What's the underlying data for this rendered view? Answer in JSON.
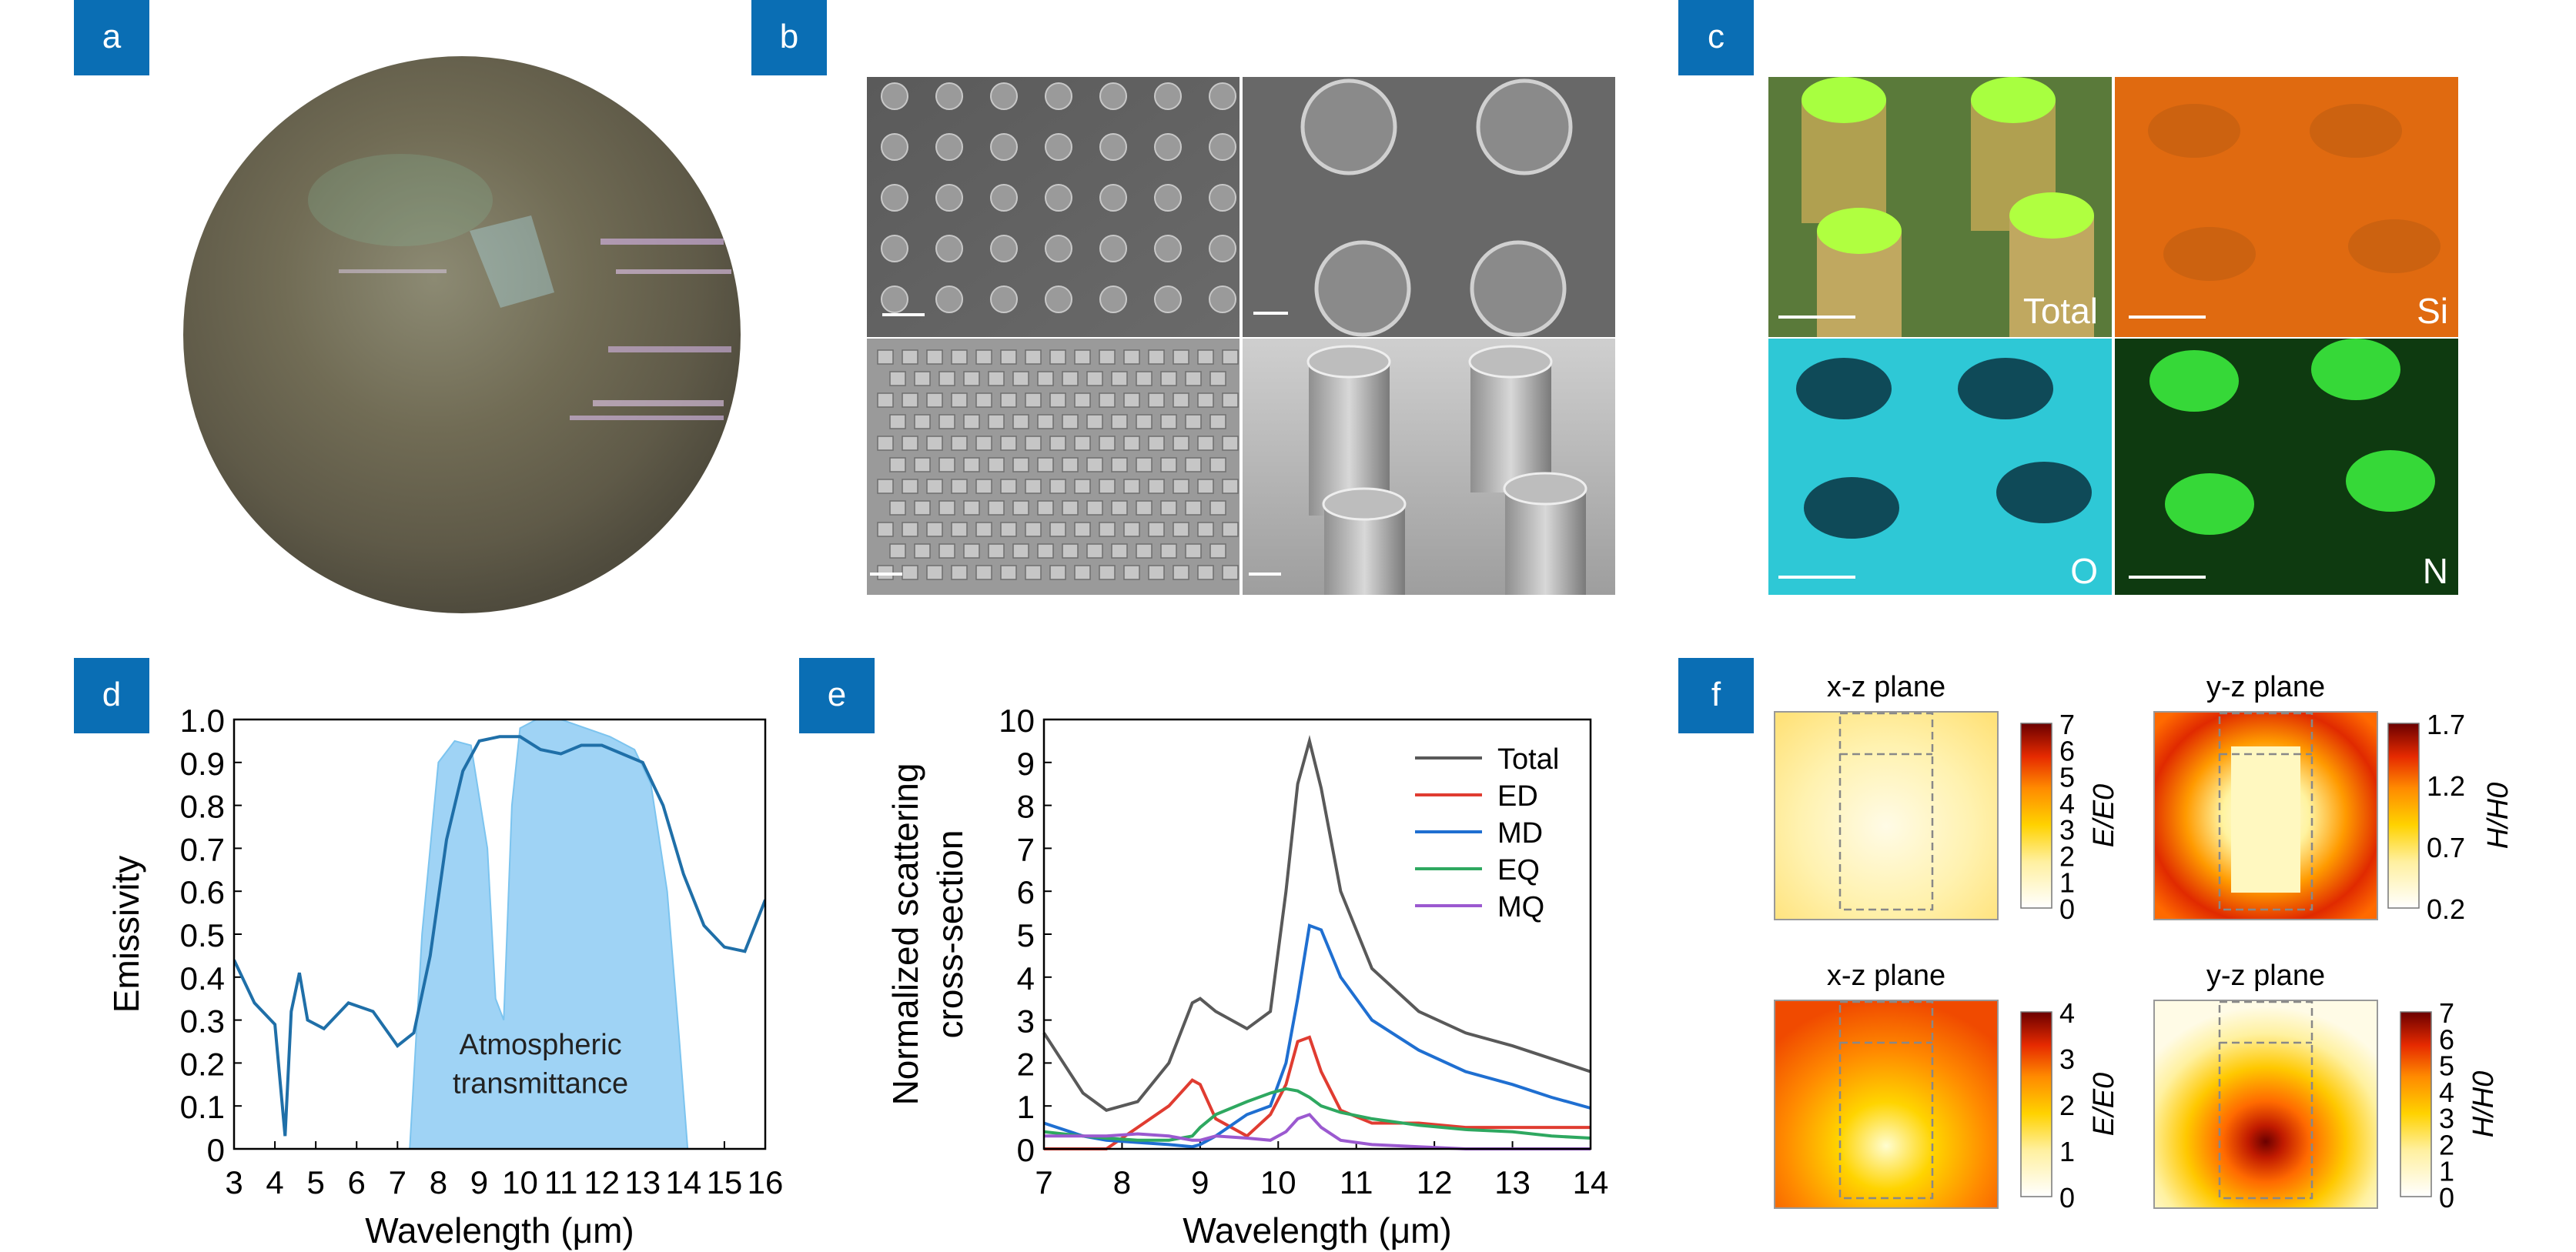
{
  "panels": {
    "a": {
      "label": "a"
    },
    "b": {
      "label": "b"
    },
    "c": {
      "label": "c",
      "maps": [
        "Total",
        "Si",
        "O",
        "N"
      ]
    },
    "d": {
      "label": "d"
    },
    "e": {
      "label": "e"
    },
    "f": {
      "label": "f",
      "maps": [
        {
          "plane": "x-z plane",
          "quantity": "E/E0",
          "ticks": [
            "7",
            "6",
            "5",
            "4",
            "3",
            "2",
            "1",
            "0"
          ]
        },
        {
          "plane": "y-z plane",
          "quantity": "H/H0",
          "ticks": [
            "1.7",
            "1.2",
            "0.7",
            "0.2"
          ]
        },
        {
          "plane": "x-z plane",
          "quantity": "E/E0",
          "ticks": [
            "4",
            "3",
            "2",
            "1",
            "0"
          ]
        },
        {
          "plane": "y-z plane",
          "quantity": "H/H0",
          "ticks": [
            "7",
            "6",
            "5",
            "4",
            "3",
            "2",
            "1",
            "0"
          ]
        }
      ]
    }
  },
  "chart_data": [
    {
      "type": "line",
      "panel": "d",
      "xlabel": "Wavelength (μm)",
      "ylabel": "Emissivity",
      "xlim": [
        3,
        16
      ],
      "ylim": [
        0,
        1.0
      ],
      "xticks": [
        "3",
        "4",
        "5",
        "6",
        "7",
        "8",
        "9",
        "10",
        "11",
        "12",
        "13",
        "14",
        "15",
        "16"
      ],
      "yticks": [
        "0",
        "0.1",
        "0.2",
        "0.3",
        "0.4",
        "0.5",
        "0.6",
        "0.7",
        "0.8",
        "0.9",
        "1.0"
      ],
      "annotation": "Atmospheric transmittance",
      "color": "#1f6fa8",
      "band_color": "#9fd3f5",
      "x": [
        3,
        3.5,
        4.0,
        4.25,
        4.4,
        4.6,
        4.8,
        5.2,
        5.8,
        6.4,
        7.0,
        7.4,
        7.8,
        8.2,
        8.6,
        9.0,
        9.5,
        10.0,
        10.5,
        11.0,
        11.5,
        12.0,
        12.5,
        13.0,
        13.5,
        14.0,
        14.5,
        15.0,
        15.5,
        16.0
      ],
      "y": [
        0.44,
        0.34,
        0.29,
        0.03,
        0.32,
        0.41,
        0.3,
        0.28,
        0.34,
        0.32,
        0.24,
        0.27,
        0.45,
        0.72,
        0.88,
        0.95,
        0.96,
        0.96,
        0.93,
        0.92,
        0.94,
        0.94,
        0.92,
        0.9,
        0.8,
        0.64,
        0.52,
        0.47,
        0.46,
        0.58
      ],
      "band_x": [
        7.3,
        7.6,
        8.0,
        8.4,
        8.8,
        9.2,
        9.4,
        9.6,
        9.8,
        10.0,
        10.4,
        11.0,
        11.6,
        12.2,
        12.8,
        13.2,
        13.6,
        13.9,
        14.1
      ],
      "band_y": [
        0.0,
        0.5,
        0.9,
        0.95,
        0.94,
        0.7,
        0.35,
        0.3,
        0.8,
        0.98,
        1.0,
        1.0,
        0.98,
        0.96,
        0.93,
        0.85,
        0.6,
        0.25,
        0.0
      ]
    },
    {
      "type": "line",
      "panel": "e",
      "xlabel": "Wavelength (μm)",
      "ylabel": "Normalized scattering cross-section",
      "ylabel_lines": [
        "Normalized scattering",
        "cross-section"
      ],
      "xlim": [
        7,
        14
      ],
      "ylim": [
        0,
        10
      ],
      "xticks": [
        "7",
        "8",
        "9",
        "10",
        "11",
        "12",
        "13",
        "14"
      ],
      "yticks": [
        "0",
        "1",
        "2",
        "3",
        "4",
        "5",
        "6",
        "7",
        "8",
        "9",
        "10"
      ],
      "legend": "top-right",
      "x": [
        7.0,
        7.5,
        7.8,
        8.2,
        8.6,
        8.9,
        9.0,
        9.2,
        9.6,
        9.9,
        10.1,
        10.25,
        10.4,
        10.55,
        10.8,
        11.2,
        11.8,
        12.4,
        13.0,
        13.5,
        14.0
      ],
      "series": [
        {
          "name": "Total",
          "color": "#595959",
          "values": [
            2.7,
            1.3,
            0.9,
            1.1,
            2.0,
            3.4,
            3.5,
            3.2,
            2.8,
            3.2,
            6.0,
            8.5,
            9.5,
            8.4,
            6.0,
            4.2,
            3.2,
            2.7,
            2.4,
            2.1,
            1.8
          ]
        },
        {
          "name": "ED",
          "color": "#e03c31",
          "values": [
            0.0,
            0.0,
            0.0,
            0.5,
            1.0,
            1.6,
            1.5,
            0.7,
            0.3,
            0.8,
            1.5,
            2.5,
            2.6,
            1.8,
            0.9,
            0.6,
            0.6,
            0.5,
            0.5,
            0.5,
            0.5
          ]
        },
        {
          "name": "MD",
          "color": "#1f6fd1",
          "values": [
            0.6,
            0.3,
            0.2,
            0.15,
            0.1,
            0.05,
            0.1,
            0.3,
            0.8,
            1.0,
            2.0,
            3.5,
            5.2,
            5.1,
            4.0,
            3.0,
            2.3,
            1.8,
            1.5,
            1.2,
            0.95
          ]
        },
        {
          "name": "EQ",
          "color": "#2ea860",
          "values": [
            0.4,
            0.3,
            0.25,
            0.2,
            0.2,
            0.3,
            0.5,
            0.8,
            1.1,
            1.3,
            1.4,
            1.35,
            1.2,
            1.0,
            0.85,
            0.7,
            0.55,
            0.45,
            0.4,
            0.3,
            0.25
          ]
        },
        {
          "name": "MQ",
          "color": "#9b59d0",
          "values": [
            0.3,
            0.3,
            0.3,
            0.35,
            0.3,
            0.2,
            0.2,
            0.3,
            0.25,
            0.2,
            0.4,
            0.7,
            0.8,
            0.5,
            0.2,
            0.1,
            0.05,
            0.0,
            0.0,
            0.0,
            0.0
          ]
        }
      ]
    }
  ]
}
